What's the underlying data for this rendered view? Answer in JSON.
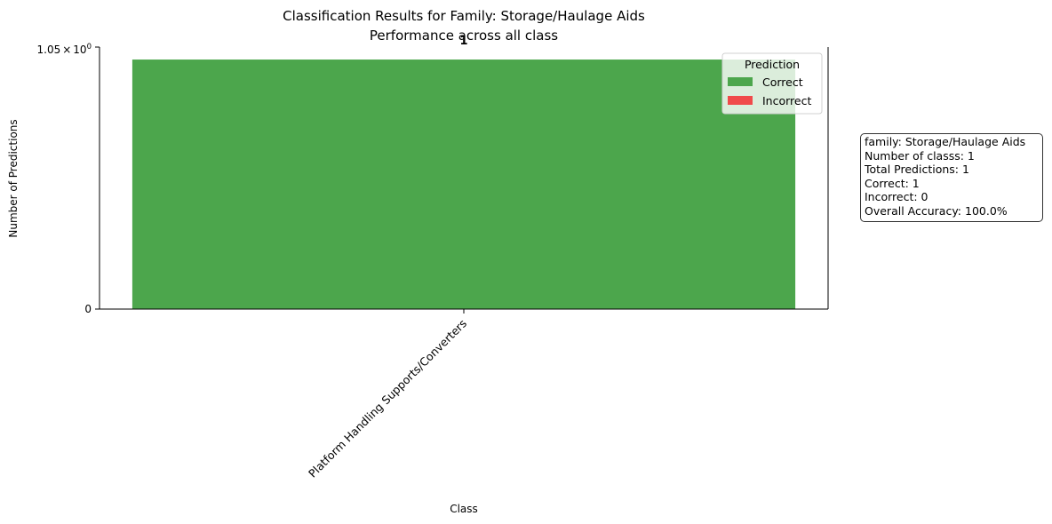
{
  "chart_data": {
    "type": "bar",
    "title": "Classification Results for Family: Storage/Haulage Aids",
    "subtitle": "Performance across all class",
    "xlabel": "Class",
    "ylabel": "Number of Predictions",
    "categories": [
      "Platform Handling Supports/Converters"
    ],
    "series": [
      {
        "name": "Correct",
        "values": [
          1
        ],
        "color": "#4ca64c"
      },
      {
        "name": "Incorrect",
        "values": [
          0
        ],
        "color": "#f04a4a"
      }
    ],
    "stacked": true,
    "yscale": "log-like",
    "ylim": [
      0,
      1.05
    ],
    "yticks": [
      "0",
      "1.05 × 10^0"
    ],
    "bar_labels": [
      "1"
    ],
    "legend": {
      "title": "Prediction",
      "placement": "top-right",
      "entries": [
        "Correct",
        "Incorrect"
      ]
    },
    "grid": false
  },
  "ytick_mantissa": "1.05",
  "ytick_times": "×",
  "ytick_base": "10",
  "ytick_exp": "0",
  "ytick_zero": "0",
  "stats_box": {
    "lines": [
      "family: Storage/Haulage Aids",
      "Number of classs: 1",
      "Total Predictions: 1",
      "Correct: 1",
      "Incorrect: 0",
      "Overall Accuracy: 100.0%"
    ]
  }
}
